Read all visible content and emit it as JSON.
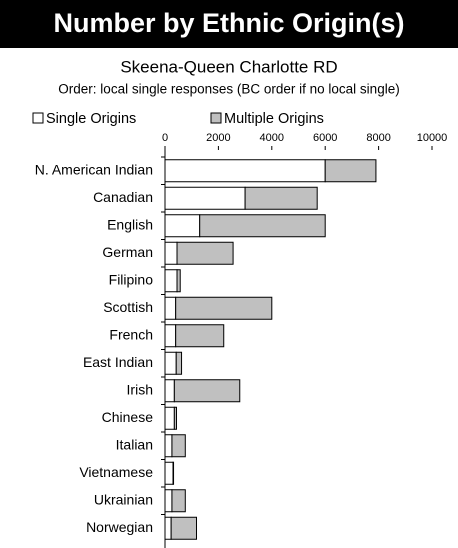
{
  "chart_data": {
    "type": "stacked_barh",
    "title": "Number by Ethnic Origin(s)",
    "subtitle": "Skeena-Queen Charlotte RD",
    "note": "Order: local single responses (BC order if no local single)",
    "categories": [
      "N. American Indian",
      "Canadian",
      "English",
      "German",
      "Filipino",
      "Scottish",
      "French",
      "East Indian",
      "Irish",
      "Chinese",
      "Italian",
      "Vietnamese",
      "Ukrainian",
      "Norwegian"
    ],
    "series": [
      {
        "name": "Single Origins",
        "color": "#ffffff",
        "values": [
          6000,
          3000,
          1300,
          450,
          450,
          400,
          400,
          420,
          350,
          350,
          260,
          300,
          260,
          230
        ]
      },
      {
        "name": "Multiple Origins",
        "color": "#c0c0c0",
        "values": [
          1900,
          2700,
          4700,
          2100,
          120,
          3600,
          1800,
          200,
          2450,
          80,
          500,
          20,
          500,
          950
        ]
      }
    ],
    "xlim": [
      0,
      10000
    ],
    "xticks": [
      0,
      2000,
      4000,
      6000,
      8000,
      10000
    ],
    "legend": "top"
  }
}
